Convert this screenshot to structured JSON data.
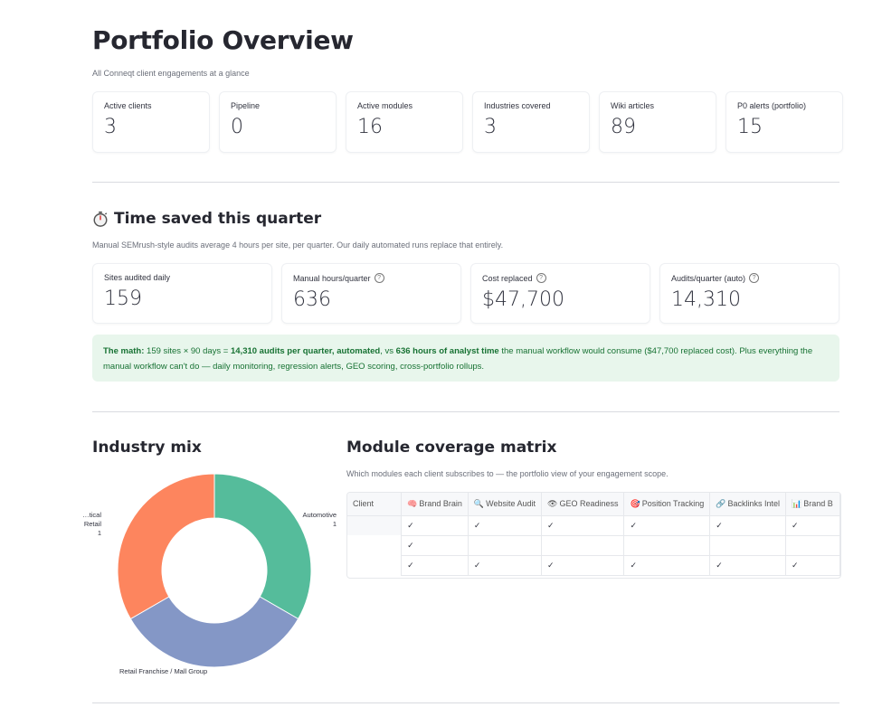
{
  "header": {
    "title": "Portfolio Overview",
    "subtitle": "All Conneqt client engagements at a glance"
  },
  "summary_metrics": [
    {
      "label": "Active clients",
      "value": "3"
    },
    {
      "label": "Pipeline",
      "value": "0"
    },
    {
      "label": "Active modules",
      "value": "16"
    },
    {
      "label": "Industries covered",
      "value": "3"
    },
    {
      "label": "Wiki articles",
      "value": "89"
    },
    {
      "label": "P0 alerts (portfolio)",
      "value": "15"
    }
  ],
  "time_saved": {
    "title": "Time saved this quarter",
    "icon": "stopwatch-icon",
    "caption": "Manual SEMrush-style audits average 4 hours per site, per quarter. Our daily automated runs replace that entirely.",
    "metrics": [
      {
        "label": "Sites audited daily",
        "value": "159",
        "help": false
      },
      {
        "label": "Manual hours/quarter",
        "value": "636",
        "help": true
      },
      {
        "label": "Cost replaced",
        "value": "$47,700",
        "help": true
      },
      {
        "label": "Audits/quarter (auto)",
        "value": "14,310",
        "help": true
      }
    ],
    "math": {
      "lead": "The math:",
      "part1": " 159 sites × 90 days = ",
      "bold1": "14,310 audits per quarter, automated",
      "part2": ", vs ",
      "bold2": "636 hours of analyst time",
      "part3": " the manual workflow would consume ($47,700 replaced cost). Plus everything the manual workflow can't do — daily monitoring, regression alerts, GEO scoring, cross-portfolio rollups."
    }
  },
  "industry_mix": {
    "title": "Industry mix",
    "chart_data": {
      "type": "pie",
      "donut": true,
      "slices": [
        {
          "label": "Automotive",
          "value": 1,
          "color": "#55bc9b"
        },
        {
          "label": "Retail Franchise / Mall Group",
          "value": 1,
          "color": "#8497c6"
        },
        {
          "label": "…tical Retail",
          "value": 1,
          "color": "#fd855e"
        }
      ]
    }
  },
  "module_matrix": {
    "title": "Module coverage matrix",
    "caption": "Which modules each client subscribes to — the portfolio view of your engagement scope.",
    "client_header": "Client",
    "columns": [
      {
        "icon": "🧠",
        "label": "Brand Brain"
      },
      {
        "icon": "🔍",
        "label": "Website Audit"
      },
      {
        "icon": "👁",
        "label": "GEO Readiness"
      },
      {
        "icon": "🎯",
        "label": "Position Tracking"
      },
      {
        "icon": "🔗",
        "label": "Backlinks Intel"
      },
      {
        "icon": "📊",
        "label": "Brand B"
      }
    ],
    "check": "✓",
    "rows": [
      [
        true,
        true,
        true,
        true,
        true,
        true
      ],
      [
        true,
        false,
        false,
        false,
        false,
        false
      ],
      [
        true,
        true,
        true,
        true,
        true,
        true
      ]
    ]
  }
}
